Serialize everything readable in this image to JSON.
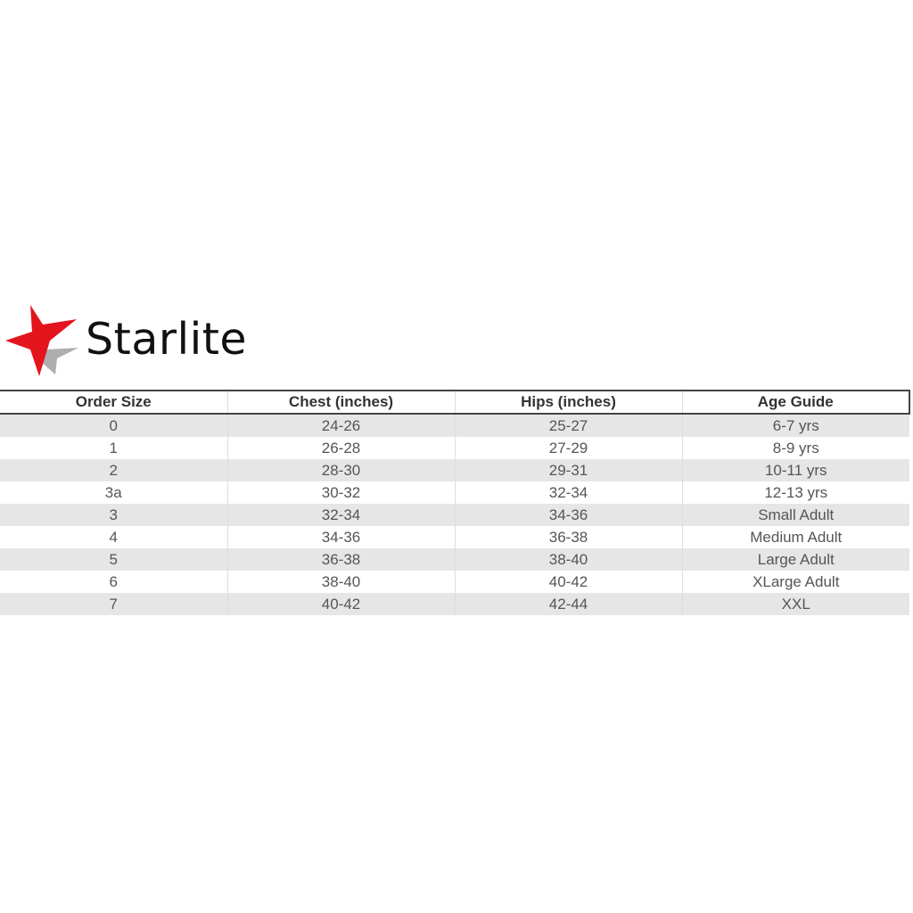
{
  "brand": {
    "name": "Starlite",
    "star_color": "#e3141c",
    "shadow_color": "#9a9a9a"
  },
  "table": {
    "headers": [
      "Order Size",
      "Chest (inches)",
      "Hips (inches)",
      "Age Guide"
    ],
    "rows": [
      [
        "0",
        "24-26",
        "25-27",
        "6-7 yrs"
      ],
      [
        "1",
        "26-28",
        "27-29",
        "8-9 yrs"
      ],
      [
        "2",
        "28-30",
        "29-31",
        "10-11 yrs"
      ],
      [
        "3a",
        "30-32",
        "32-34",
        "12-13 yrs"
      ],
      [
        "3",
        "32-34",
        "34-36",
        "Small Adult"
      ],
      [
        "4",
        "34-36",
        "36-38",
        "Medium Adult"
      ],
      [
        "5",
        "36-38",
        "38-40",
        "Large Adult"
      ],
      [
        "6",
        "38-40",
        "40-42",
        "XLarge Adult"
      ],
      [
        "7",
        "40-42",
        "42-44",
        "XXL"
      ]
    ]
  }
}
